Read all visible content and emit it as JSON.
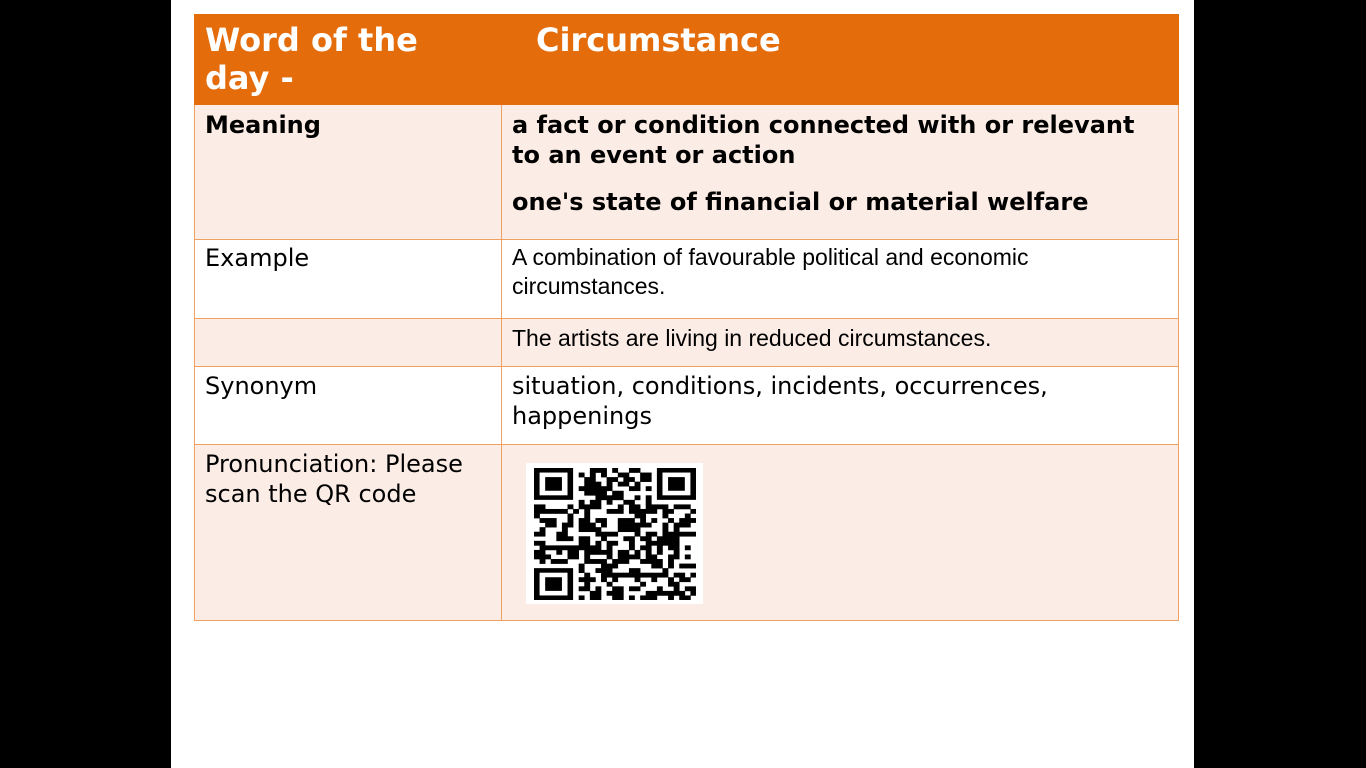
{
  "header": {
    "label": "Word of the day -",
    "word": "Circumstance"
  },
  "rows": {
    "meaning": {
      "label": "Meaning",
      "definitions": [
        "a fact or condition connected with or relevant to an event or action",
        "one's state of financial or material welfare"
      ]
    },
    "example": {
      "label": "Example",
      "sentences": [
        "A combination of favourable political and economic circumstances.",
        "The artists are living in reduced circumstances."
      ]
    },
    "synonym": {
      "label": "Synonym",
      "value": "situation, conditions, incidents, occurrences, happenings"
    },
    "pronunciation": {
      "label": "Pronunciation: Please scan the QR code",
      "qr_icon": "qr-code-icon"
    }
  },
  "colors": {
    "header": "#e46c0a",
    "tint": "#fcece6",
    "border": "#f0a060"
  }
}
